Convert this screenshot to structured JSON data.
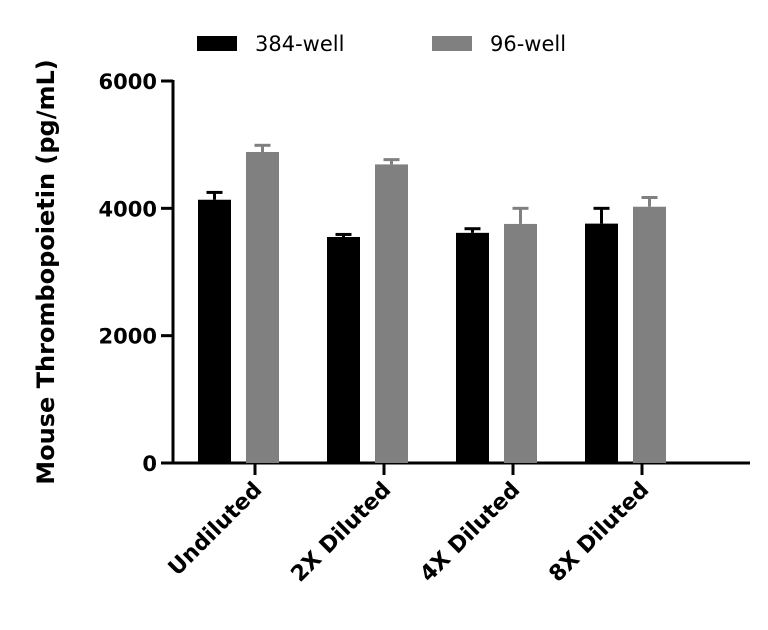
{
  "chart_data": {
    "type": "bar",
    "title": "",
    "xlabel": "",
    "ylabel": "Mouse Thrombopoietin (pg/mL)",
    "ylim": [
      0,
      6000
    ],
    "yticks": [
      0,
      2000,
      4000,
      6000
    ],
    "grid": false,
    "legend_position": "top",
    "categories": [
      "Undiluted",
      "2X Diluted",
      "4X Diluted",
      "8X Diluted"
    ],
    "series": [
      {
        "name": "384-well",
        "color": "#000000",
        "values": [
          4135,
          3550,
          3615,
          3760
        ],
        "error_upper": [
          4250,
          3590,
          3680,
          4000
        ]
      },
      {
        "name": "96-well",
        "color": "#808080",
        "values": [
          4885,
          4690,
          3755,
          4025
        ],
        "error_upper": [
          4990,
          4765,
          4000,
          4170
        ]
      }
    ]
  }
}
